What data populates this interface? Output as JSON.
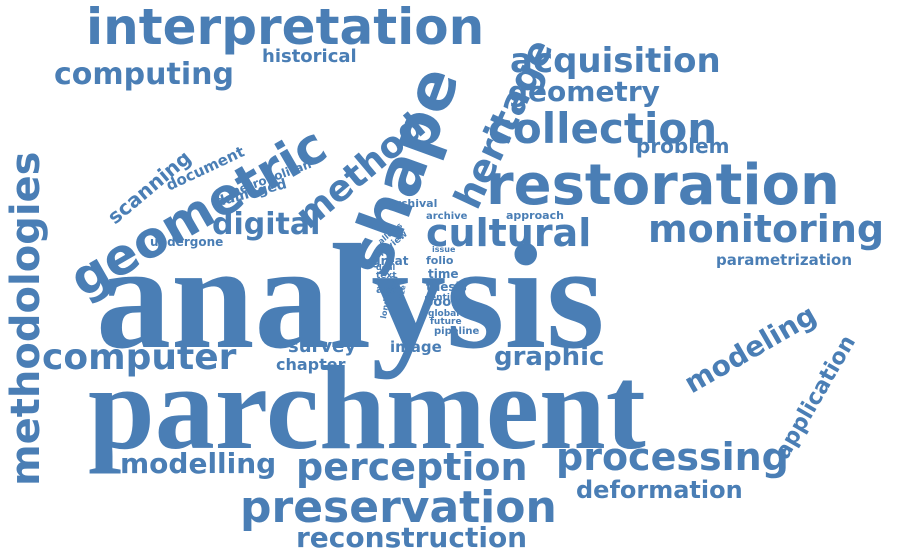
{
  "accent_color": "#4a7eb5",
  "words": {
    "analysis": "analysis",
    "parchment": "parchment",
    "interpretation": "interpretation",
    "restoration": "restoration",
    "shape": "shape",
    "geometric": "geometric",
    "methodologies": "methodologies",
    "preservation": "preservation",
    "perception": "perception",
    "cultural": "cultural",
    "monitoring": "monitoring",
    "collection": "collection",
    "computer": "computer",
    "processing": "processing",
    "heritage": "heritage",
    "method": "method",
    "acquisition": "acquisition",
    "computing": "computing",
    "geometry": "geometry",
    "digital": "digital",
    "reconstruction": "reconstruction",
    "modelling": "modelling",
    "modeling": "modeling",
    "graphic": "graphic",
    "deformation": "deformation",
    "application": "application",
    "scanning": "scanning",
    "problem": "problem",
    "historical": "historical",
    "document": "document",
    "metropolitan": "metropolitan",
    "damaged": "damaged",
    "parametrization": "parametrization",
    "survey": "survey",
    "chapter": "chapter",
    "image": "image",
    "undergone": "undergone",
    "approach": "approach",
    "archival": "archival",
    "archive": "archive",
    "folio": "folio",
    "time": "time",
    "thesis": "thesis",
    "entire": "entire",
    "book": "book",
    "global": "global",
    "future": "future",
    "pipeline": "pipeline",
    "great": "great",
    "text": "text",
    "area": "area",
    "allows": "allows",
    "review": "review",
    "deal": "deal",
    "issue": "issue",
    "london": "london",
    "local": "local",
    "size": "size"
  }
}
